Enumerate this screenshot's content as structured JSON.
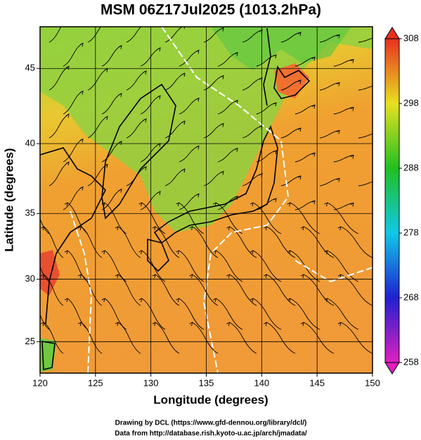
{
  "chart_data": {
    "type": "map",
    "title": "MSM 06Z17Jul2025 (1013.2hPa)",
    "x_label": "Longitude (degrees)",
    "y_label": "Latitude  (degrees)",
    "projection": "mercator",
    "xlim": [
      120,
      150
    ],
    "xticks": [
      120,
      125,
      130,
      135,
      140,
      145,
      150
    ],
    "ylim": [
      22.4,
      47.6
    ],
    "yticks": [
      25,
      30,
      35,
      40,
      45
    ],
    "grid": true,
    "colorbar": {
      "lim": [
        258,
        308
      ],
      "ticks": [
        258,
        268,
        278,
        288,
        298,
        308
      ],
      "colors": [
        "#e020c0",
        "#2020d0",
        "#10c8e8",
        "#20c020",
        "#e8e020",
        "#e83020"
      ]
    },
    "footer": [
      "Drawing by DCL (https://www.gfd-dennou.org/library/dcl/)",
      "Data from http://database.rish.kyoto-u.ac.jp/arch/jmadata/"
    ]
  }
}
